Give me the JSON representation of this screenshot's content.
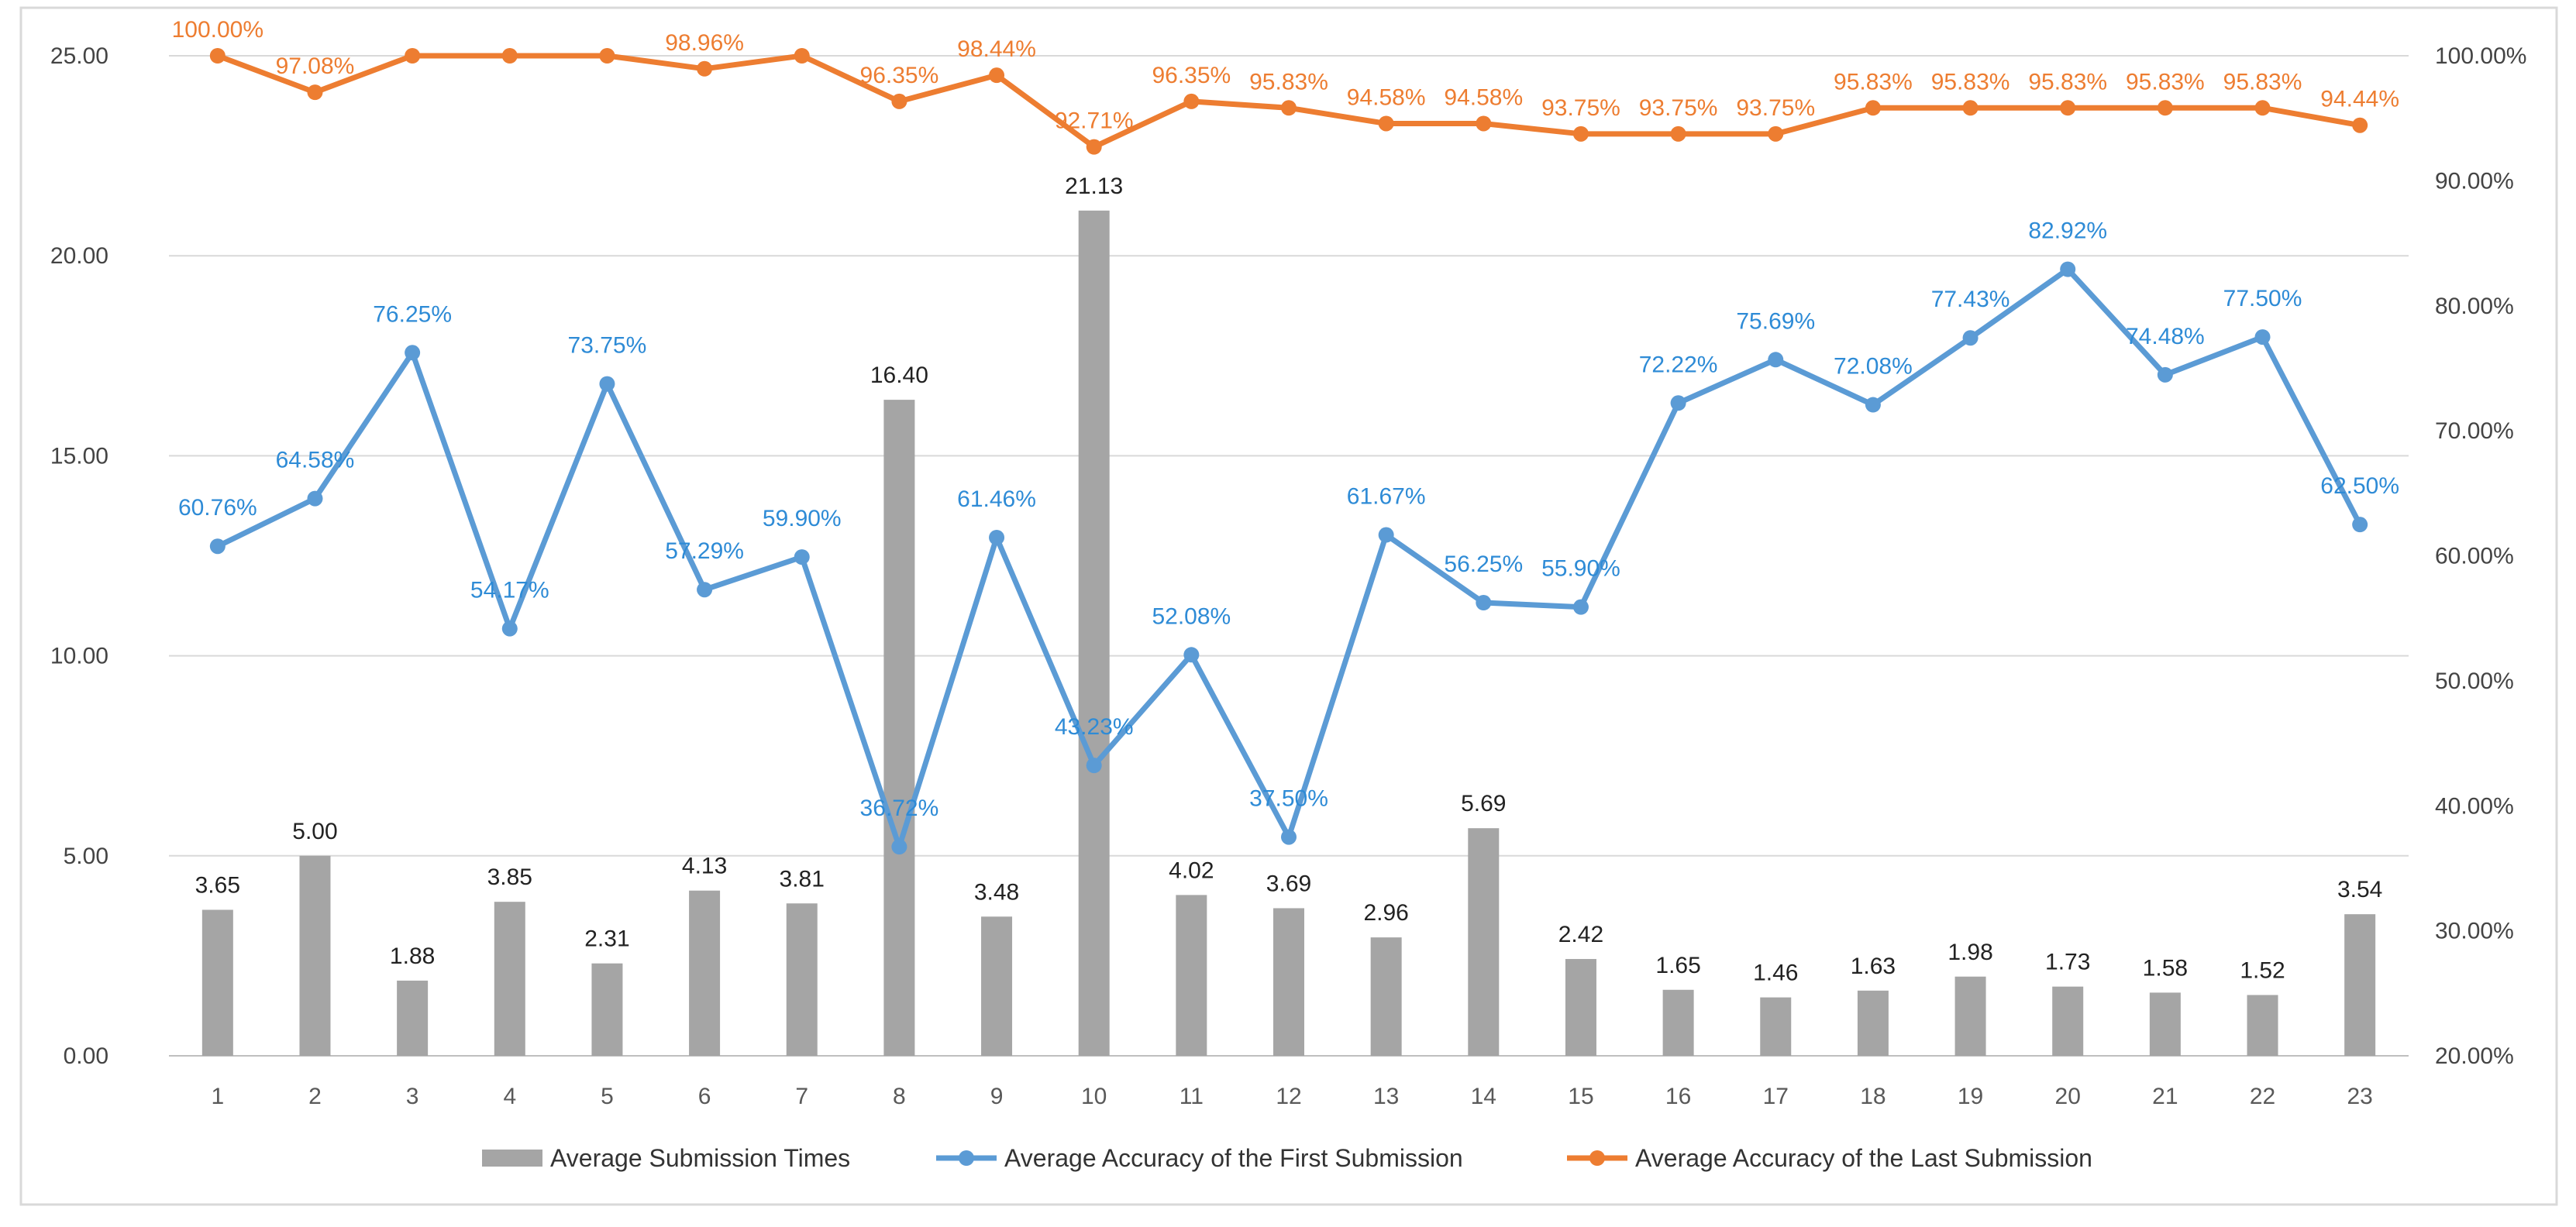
{
  "chart_data": {
    "type": "bar+line",
    "categories": [
      "1",
      "2",
      "3",
      "4",
      "5",
      "6",
      "7",
      "8",
      "9",
      "10",
      "11",
      "12",
      "13",
      "14",
      "15",
      "16",
      "17",
      "18",
      "19",
      "20",
      "21",
      "22",
      "23"
    ],
    "series": [
      {
        "name": "Average Submission Times",
        "type": "bar",
        "axis": "left",
        "color": "#a5a5a5",
        "values": [
          3.65,
          5.0,
          1.88,
          3.85,
          2.31,
          4.13,
          3.81,
          16.4,
          3.48,
          21.13,
          4.02,
          3.69,
          2.96,
          5.69,
          2.42,
          1.65,
          1.46,
          1.63,
          1.98,
          1.73,
          1.58,
          1.52,
          3.54
        ],
        "labels": [
          "3.65",
          "5.00",
          "1.88",
          "3.85",
          "2.31",
          "4.13",
          "3.81",
          "16.40",
          "3.48",
          "21.13",
          "4.02",
          "3.69",
          "2.96",
          "5.69",
          "2.42",
          "1.65",
          "1.46",
          "1.63",
          "1.98",
          "1.73",
          "1.58",
          "1.52",
          "3.54"
        ]
      },
      {
        "name": "Average Accuracy of the First Submission",
        "type": "line",
        "axis": "right",
        "color": "#5b9bd5",
        "label_color": "#2e8bd6",
        "values": [
          60.76,
          64.58,
          76.25,
          54.17,
          73.75,
          57.29,
          59.9,
          36.72,
          61.46,
          43.23,
          52.08,
          37.5,
          61.67,
          56.25,
          55.9,
          72.22,
          75.69,
          72.08,
          77.43,
          82.92,
          74.48,
          77.5,
          62.5
        ],
        "labels": [
          "60.76%",
          "64.58%",
          "76.25%",
          "54.17%",
          "73.75%",
          "57.29%",
          "59.90%",
          "36.72%",
          "61.46%",
          "43.23%",
          "52.08%",
          "37.50%",
          "61.67%",
          "56.25%",
          "55.90%",
          "72.22%",
          "75.69%",
          "72.08%",
          "77.43%",
          "82.92%",
          "74.48%",
          "77.50%",
          "62.50%"
        ]
      },
      {
        "name": "Average Accuracy of the Last Submission",
        "type": "line",
        "axis": "right",
        "color": "#ed7d31",
        "label_color": "#ed7d31",
        "values": [
          100.0,
          97.08,
          100.0,
          100.0,
          100.0,
          98.96,
          100.0,
          96.35,
          98.44,
          92.71,
          96.35,
          95.83,
          94.58,
          94.58,
          93.75,
          93.75,
          93.75,
          95.83,
          95.83,
          95.83,
          95.83,
          95.83,
          94.44
        ],
        "labels": [
          "100.00%",
          "97.08%",
          "",
          "",
          "",
          "98.96%",
          "",
          "96.35%",
          "98.44%",
          "92.71%",
          "96.35%",
          "95.83%",
          "94.58%",
          "94.58%",
          "93.75%",
          "93.75%",
          "93.75%",
          "95.83%",
          "95.83%",
          "95.83%",
          "95.83%",
          "95.83%",
          "94.44%"
        ]
      }
    ],
    "y_left": {
      "min": 0,
      "max": 25,
      "ticks": [
        "0.00",
        "5.00",
        "10.00",
        "15.00",
        "20.00",
        "25.00"
      ]
    },
    "y_right": {
      "min": 20,
      "max": 100,
      "ticks": [
        "20.00%",
        "30.00%",
        "40.00%",
        "50.00%",
        "60.00%",
        "70.00%",
        "80.00%",
        "90.00%",
        "100.00%"
      ]
    },
    "grid": true,
    "legend": {
      "position": "bottom",
      "items": [
        {
          "label": "Average Submission Times",
          "color": "#a5a5a5",
          "symbol": "bar"
        },
        {
          "label": "Average Accuracy of the First Submission",
          "color": "#5b9bd5",
          "symbol": "line-marker"
        },
        {
          "label": "Average Accuracy of the Last Submission",
          "color": "#ed7d31",
          "symbol": "line-marker"
        }
      ]
    },
    "colors": {
      "grid": "#d9d9d9",
      "axis": "#bfbfbf",
      "frame": "#d9d9d9"
    }
  }
}
